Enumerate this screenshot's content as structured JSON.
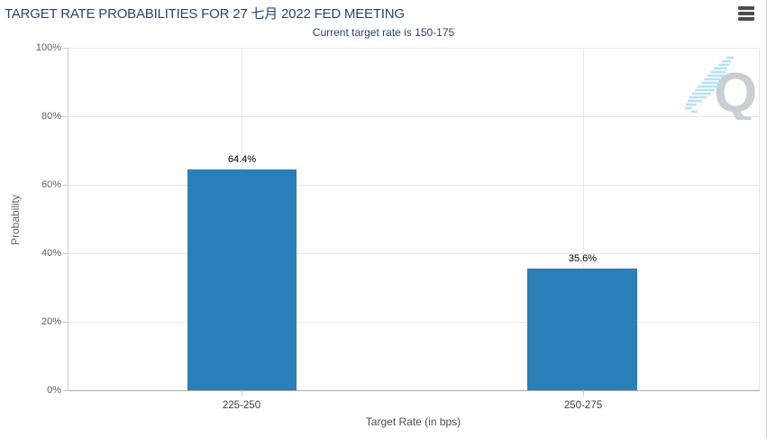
{
  "header": {
    "title": "TARGET RATE PROBABILITIES FOR 27 七月 2022 FED MEETING",
    "menu_icon": "hamburger-menu-icon"
  },
  "subtitle": "Current target rate is 150-175",
  "watermark": {
    "icon": "quikstrike-q-logo"
  },
  "colors": {
    "title": "#26466e",
    "bar": "#2a7fb8",
    "gridline": "#e6e6e6",
    "axis_line": "#ababab"
  },
  "chart_data": {
    "type": "bar",
    "title": "TARGET RATE PROBABILITIES FOR 27 七月 2022 FED MEETING",
    "subtitle": "Current target rate is 150-175",
    "categories": [
      "225-250",
      "250-275"
    ],
    "values": [
      64.4,
      35.6
    ],
    "data_labels": [
      "64.4%",
      "35.6%"
    ],
    "xlabel": "Target Rate (in bps)",
    "ylabel": "Probability",
    "ylim": [
      0,
      100
    ],
    "ytick_labels": [
      "100%",
      "80%",
      "60%",
      "40%",
      "20%",
      "0%"
    ],
    "grid": true,
    "legend": "none",
    "bar_color": "#2a7fb8"
  }
}
